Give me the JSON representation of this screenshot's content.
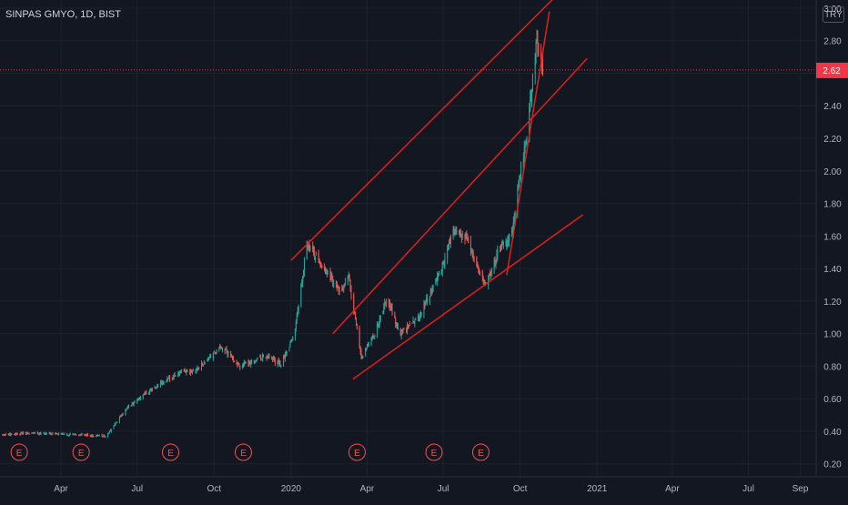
{
  "header": {
    "symbol_line": "SINPAS GMYO, 1D, BIST",
    "currency": "TRY"
  },
  "price_tag": "2.62",
  "colors": {
    "background": "#131722",
    "grid": "#1e222d",
    "up": "#26a69a",
    "down": "#ef5350",
    "trendline": "#e0201b",
    "axis_text": "#b2b5be",
    "price_tag_bg": "#f23645"
  },
  "earnings_marker_label": "E",
  "chart_data": {
    "type": "candlestick",
    "title": "SINPAS GMYO, 1D, BIST",
    "currency": "TRY",
    "current_price": 2.62,
    "x_ticks": [
      "Apr",
      "Jul",
      "Oct",
      "2020",
      "Apr",
      "Jul",
      "Oct",
      "2021",
      "Apr",
      "Jul",
      "Sep"
    ],
    "y_ticks": [
      "0.20",
      "0.40",
      "0.60",
      "0.80",
      "1.00",
      "1.20",
      "1.40",
      "1.60",
      "1.80",
      "2.00",
      "2.20",
      "2.40",
      "2.60",
      "2.80",
      "3.00"
    ],
    "ylim": [
      0.12,
      3.05
    ],
    "x_range": [
      "2019-01-18",
      "2021-09-20"
    ],
    "grid": true,
    "approx_close_path": [
      {
        "date": "2019-01-20",
        "close": 0.38
      },
      {
        "date": "2019-03-01",
        "close": 0.39
      },
      {
        "date": "2019-04-15",
        "close": 0.38
      },
      {
        "date": "2019-05-25",
        "close": 0.37
      },
      {
        "date": "2019-06-20",
        "close": 0.55
      },
      {
        "date": "2019-07-20",
        "close": 0.66
      },
      {
        "date": "2019-08-20",
        "close": 0.76
      },
      {
        "date": "2019-09-10",
        "close": 0.78
      },
      {
        "date": "2019-10-10",
        "close": 0.92
      },
      {
        "date": "2019-11-01",
        "close": 0.8
      },
      {
        "date": "2019-12-01",
        "close": 0.86
      },
      {
        "date": "2019-12-20",
        "close": 0.81
      },
      {
        "date": "2020-01-05",
        "close": 1.0
      },
      {
        "date": "2020-01-20",
        "close": 1.55
      },
      {
        "date": "2020-02-10",
        "close": 1.4
      },
      {
        "date": "2020-03-01",
        "close": 1.25
      },
      {
        "date": "2020-03-10",
        "close": 1.35
      },
      {
        "date": "2020-03-25",
        "close": 0.85
      },
      {
        "date": "2020-04-10",
        "close": 1.0
      },
      {
        "date": "2020-04-25",
        "close": 1.22
      },
      {
        "date": "2020-05-10",
        "close": 1.0
      },
      {
        "date": "2020-06-01",
        "close": 1.1
      },
      {
        "date": "2020-06-25",
        "close": 1.35
      },
      {
        "date": "2020-07-15",
        "close": 1.65
      },
      {
        "date": "2020-08-01",
        "close": 1.55
      },
      {
        "date": "2020-08-20",
        "close": 1.3
      },
      {
        "date": "2020-09-05",
        "close": 1.5
      },
      {
        "date": "2020-09-22",
        "close": 1.62
      },
      {
        "date": "2020-10-01",
        "close": 2.0
      },
      {
        "date": "2020-10-10",
        "close": 2.25
      },
      {
        "date": "2020-10-20",
        "close": 2.8
      },
      {
        "date": "2020-10-28",
        "close": 2.62
      }
    ],
    "trendlines": [
      {
        "name": "upper channel",
        "from": {
          "date": "2020-01-01",
          "price": 1.45
        },
        "to": {
          "date": "2020-11-10",
          "price": 3.06
        }
      },
      {
        "name": "middle channel",
        "from": {
          "date": "2020-02-20",
          "price": 1.0
        },
        "to": {
          "date": "2020-12-20",
          "price": 2.69
        }
      },
      {
        "name": "lower channel",
        "from": {
          "date": "2020-03-15",
          "price": 0.72
        },
        "to": {
          "date": "2020-12-15",
          "price": 1.73
        }
      },
      {
        "name": "steep support",
        "from": {
          "date": "2020-09-15",
          "price": 1.36
        },
        "to": {
          "date": "2020-11-05",
          "price": 2.98
        }
      }
    ],
    "earnings_markers": [
      "2019-02-10",
      "2019-04-25",
      "2019-08-10",
      "2019-11-05",
      "2020-03-20",
      "2020-06-20",
      "2020-08-15"
    ],
    "annotations": [
      "E"
    ]
  }
}
